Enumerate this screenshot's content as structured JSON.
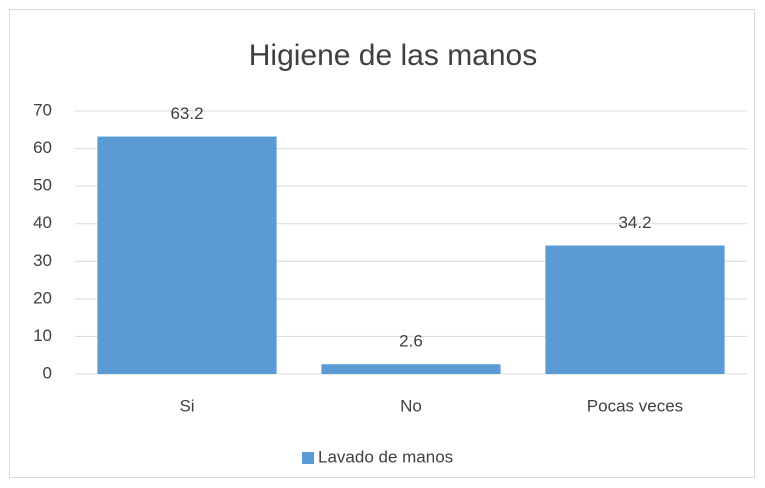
{
  "chart_data": {
    "type": "bar",
    "title": "Higiene de las manos",
    "categories": [
      "Si",
      "No",
      "Pocas veces"
    ],
    "series": [
      {
        "name": "Lavado de manos",
        "color": "#5b9bd5",
        "values": [
          63.2,
          2.6,
          34.2
        ]
      }
    ],
    "ylim": [
      0,
      70
    ],
    "yticks": [
      0,
      10,
      20,
      30,
      40,
      50,
      60,
      70
    ],
    "grid": true,
    "legend": "bottom"
  }
}
